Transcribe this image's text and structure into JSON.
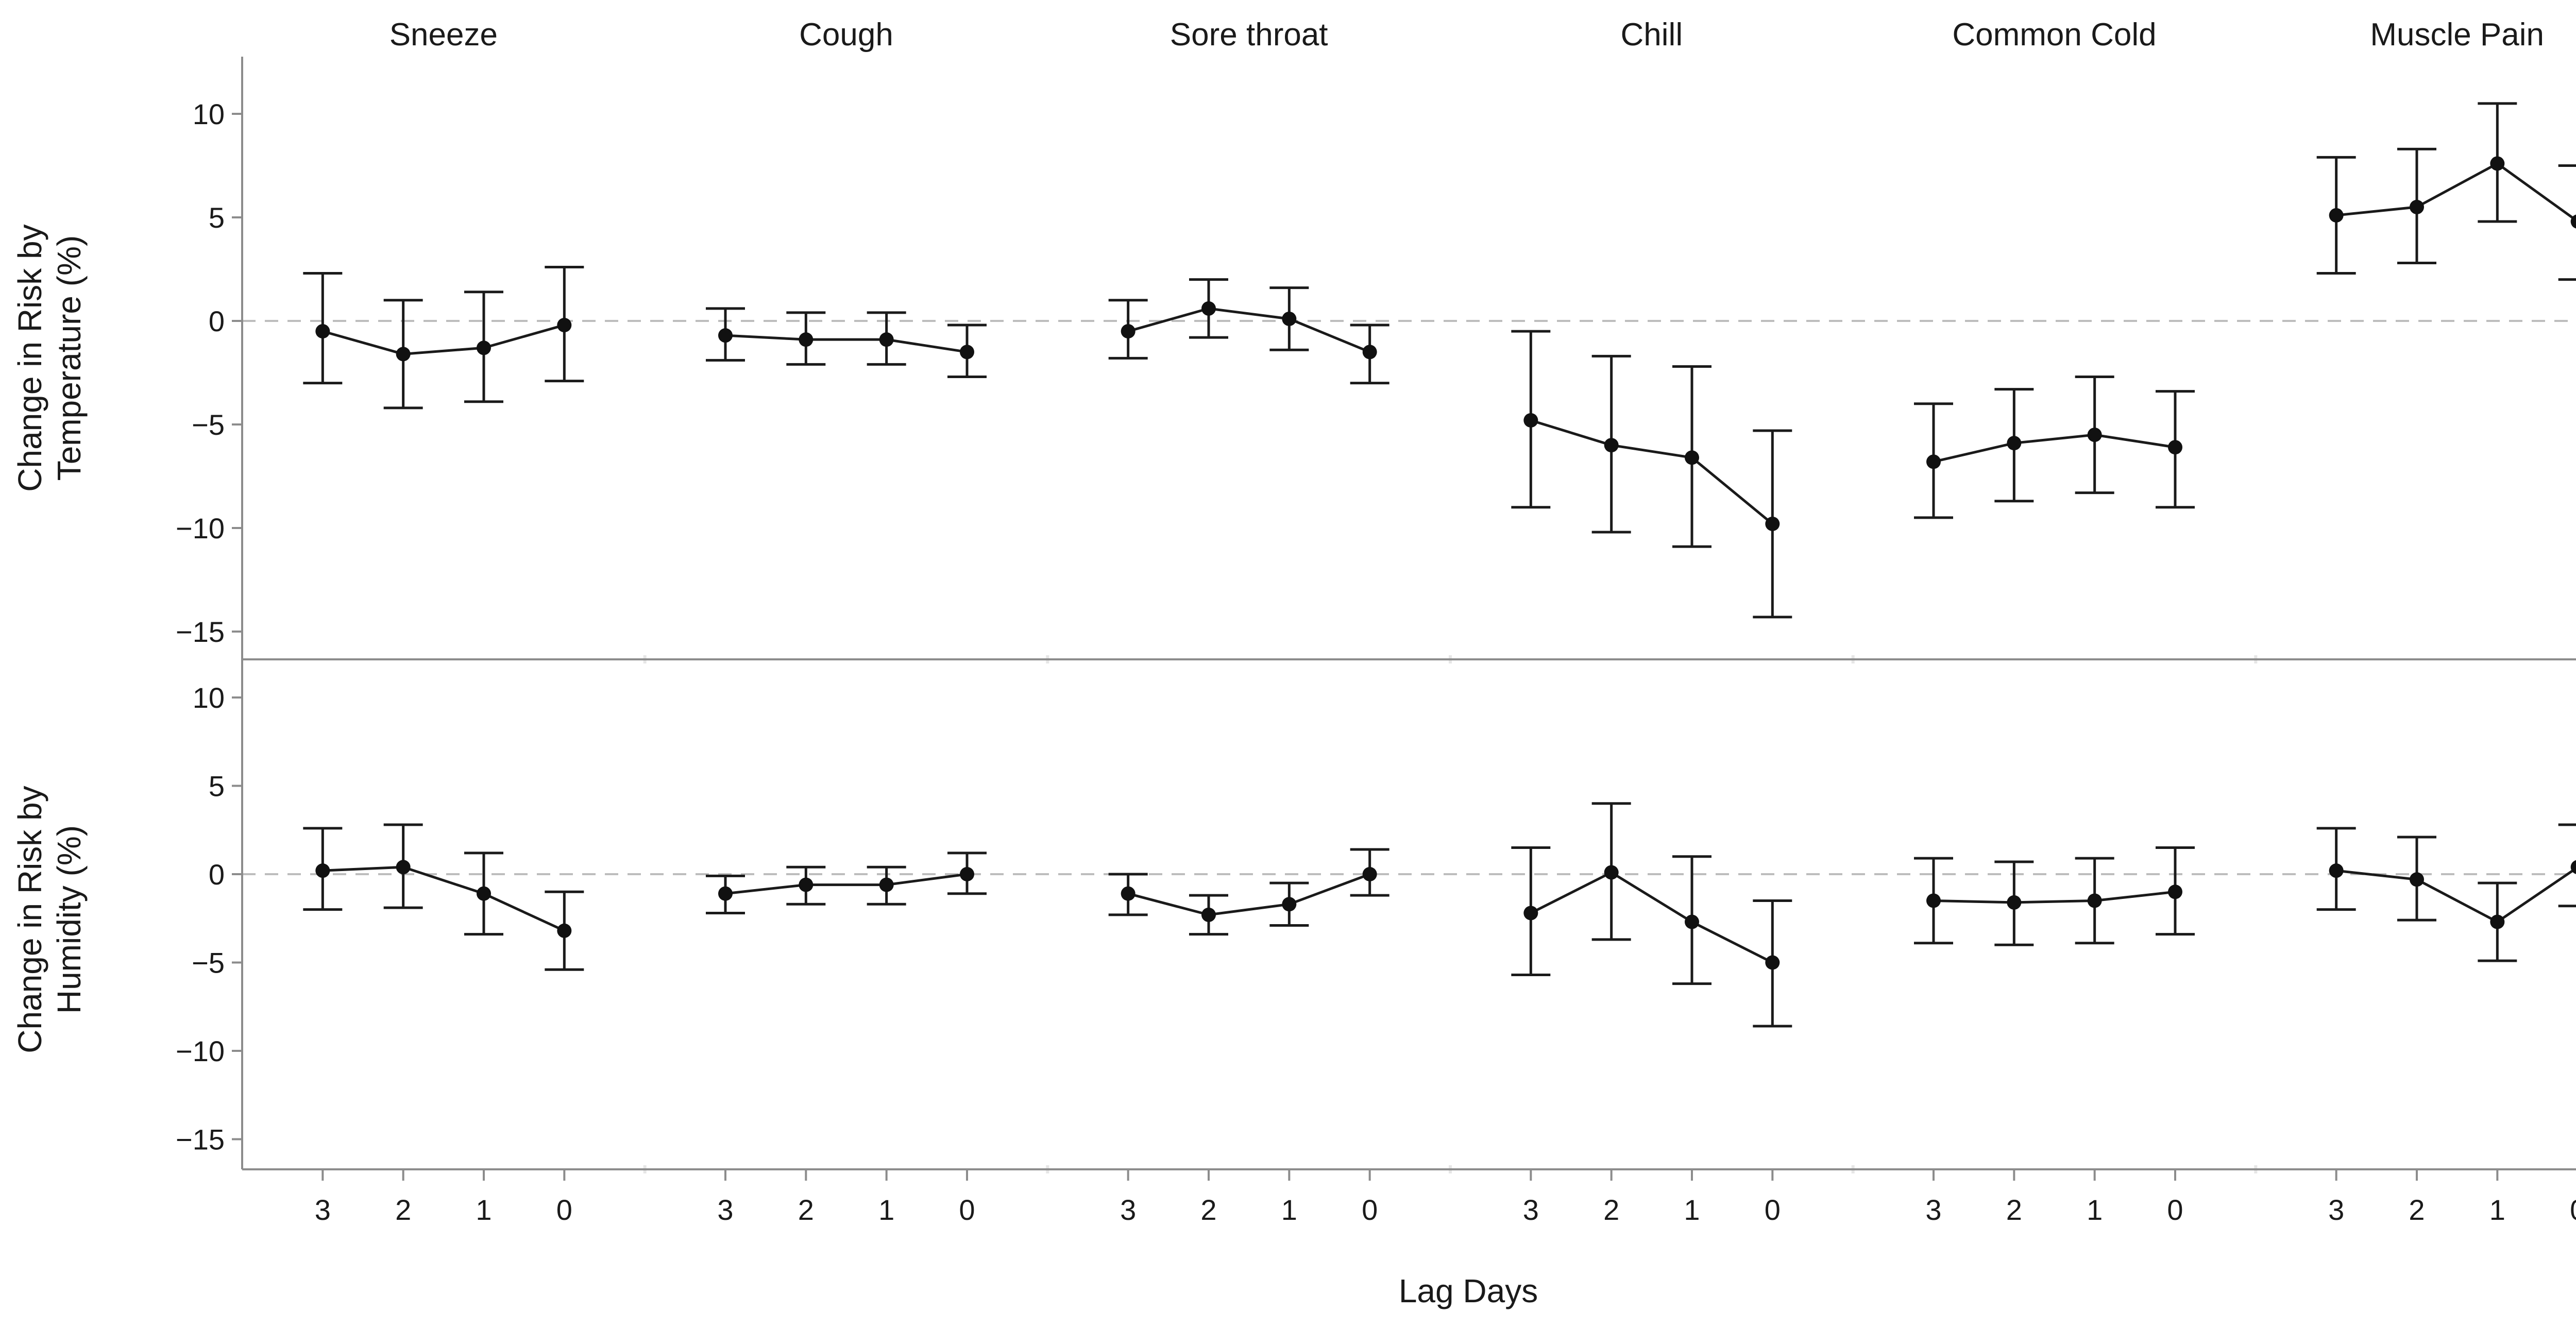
{
  "chart_data": {
    "type": "line",
    "layout": "faceted grid, 2 rows x 6 columns",
    "x_title": "Lag Days",
    "x_categories": [
      "3",
      "2",
      "1",
      "0"
    ],
    "ylim": [
      -16,
      12
    ],
    "y_ticks": [
      10,
      5,
      0,
      -5,
      -10,
      -15
    ],
    "y_tick_labels": [
      "10",
      "5",
      "0",
      "−5",
      "−10",
      "−15"
    ],
    "reference_line": 0,
    "facets": [
      "Sneeze",
      "Cough",
      "Sore throat",
      "Chill",
      "Common Cold",
      "Muscle Pain"
    ],
    "rows": [
      {
        "name": "temperature",
        "ylabel": [
          "Change in Risk by",
          "Temperature (%)"
        ],
        "series": [
          {
            "facet": "Sneeze",
            "values": [
              -0.5,
              -1.6,
              -1.3,
              -0.2
            ],
            "lower": [
              -3.0,
              -4.2,
              -3.9,
              -2.9
            ],
            "upper": [
              2.3,
              1.0,
              1.4,
              2.6
            ]
          },
          {
            "facet": "Cough",
            "values": [
              -0.7,
              -0.9,
              -0.9,
              -1.5
            ],
            "lower": [
              -1.9,
              -2.1,
              -2.1,
              -2.7
            ],
            "upper": [
              0.6,
              0.4,
              0.4,
              -0.2
            ]
          },
          {
            "facet": "Sore throat",
            "values": [
              -0.5,
              0.6,
              0.1,
              -1.5
            ],
            "lower": [
              -1.8,
              -0.8,
              -1.4,
              -3.0
            ],
            "upper": [
              1.0,
              2.0,
              1.6,
              -0.2
            ]
          },
          {
            "facet": "Chill",
            "values": [
              -4.8,
              -6.0,
              -6.6,
              -9.8
            ],
            "lower": [
              -9.0,
              -10.2,
              -10.9,
              -14.3
            ],
            "upper": [
              -0.5,
              -1.7,
              -2.2,
              -5.3
            ]
          },
          {
            "facet": "Common Cold",
            "values": [
              -6.8,
              -5.9,
              -5.5,
              -6.1
            ],
            "lower": [
              -9.5,
              -8.7,
              -8.3,
              -9.0
            ],
            "upper": [
              -4.0,
              -3.3,
              -2.7,
              -3.4
            ]
          },
          {
            "facet": "Muscle Pain",
            "values": [
              5.1,
              5.5,
              7.6,
              4.8
            ],
            "lower": [
              2.3,
              2.8,
              4.8,
              2.0
            ],
            "upper": [
              7.9,
              8.3,
              10.5,
              7.5
            ]
          }
        ]
      },
      {
        "name": "humidity",
        "ylabel": [
          "Change in Risk by",
          "Humidity (%)"
        ],
        "series": [
          {
            "facet": "Sneeze",
            "values": [
              0.2,
              0.4,
              -1.1,
              -3.2
            ],
            "lower": [
              -2.0,
              -1.9,
              -3.4,
              -5.4
            ],
            "upper": [
              2.6,
              2.8,
              1.2,
              -1.0
            ]
          },
          {
            "facet": "Cough",
            "values": [
              -1.1,
              -0.6,
              -0.6,
              0.0
            ],
            "lower": [
              -2.2,
              -1.7,
              -1.7,
              -1.1
            ],
            "upper": [
              -0.1,
              0.4,
              0.4,
              1.2
            ]
          },
          {
            "facet": "Sore throat",
            "values": [
              -1.1,
              -2.3,
              -1.7,
              0.0
            ],
            "lower": [
              -2.3,
              -3.4,
              -2.9,
              -1.2
            ],
            "upper": [
              0.0,
              -1.2,
              -0.5,
              1.4
            ]
          },
          {
            "facet": "Chill",
            "values": [
              -2.2,
              0.1,
              -2.7,
              -5.0
            ],
            "lower": [
              -5.7,
              -3.7,
              -6.2,
              -8.6
            ],
            "upper": [
              1.5,
              4.0,
              1.0,
              -1.5
            ]
          },
          {
            "facet": "Common Cold",
            "values": [
              -1.5,
              -1.6,
              -1.5,
              -1.0
            ],
            "lower": [
              -3.9,
              -4.0,
              -3.9,
              -3.4
            ],
            "upper": [
              0.9,
              0.7,
              0.9,
              1.5
            ]
          },
          {
            "facet": "Muscle Pain",
            "values": [
              0.2,
              -0.3,
              -2.7,
              0.4
            ],
            "lower": [
              -2.0,
              -2.6,
              -4.9,
              -1.8
            ],
            "upper": [
              2.6,
              2.1,
              -0.5,
              2.8
            ]
          }
        ]
      }
    ]
  }
}
